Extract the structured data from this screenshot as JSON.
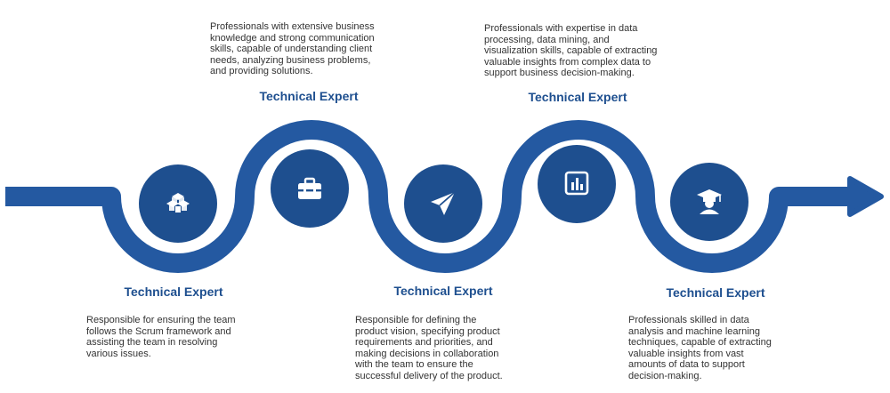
{
  "colors": {
    "band": "#2459a1",
    "circle": "#1e4f8f",
    "title": "#1e4f8f",
    "text": "#333333"
  },
  "steps": [
    {
      "title": "Technical Expert",
      "icon": "cubes-icon",
      "lines": [
        "Responsible for ensuring the team",
        "follows the Scrum framework and",
        "assisting the team in resolving",
        "various issues."
      ]
    },
    {
      "title": "Technical Expert",
      "icon": "briefcase-icon",
      "lines": [
        "Professionals with extensive business",
        "knowledge and strong communication",
        "skills, capable of understanding client",
        "needs, analyzing business problems,",
        "and providing solutions."
      ]
    },
    {
      "title": "Technical Expert",
      "icon": "paper-plane-icon",
      "lines": [
        "Responsible for defining the",
        "product vision, specifying product",
        "requirements and priorities, and",
        "making decisions in collaboration",
        "with the team to ensure the",
        "successful delivery of the product."
      ]
    },
    {
      "title": "Technical Expert",
      "icon": "bar-chart-icon",
      "lines": [
        "Professionals with expertise in data",
        "processing, data mining, and",
        "visualization skills, capable of extracting",
        "valuable insights from complex data to",
        "support business decision-making."
      ]
    },
    {
      "title": "Technical Expert",
      "icon": "graduation-cap-icon",
      "lines": [
        "Professionals skilled in data",
        "analysis and machine learning",
        "techniques, capable of extracting",
        "valuable insights from vast",
        "amounts of data to support",
        "decision-making."
      ]
    }
  ]
}
